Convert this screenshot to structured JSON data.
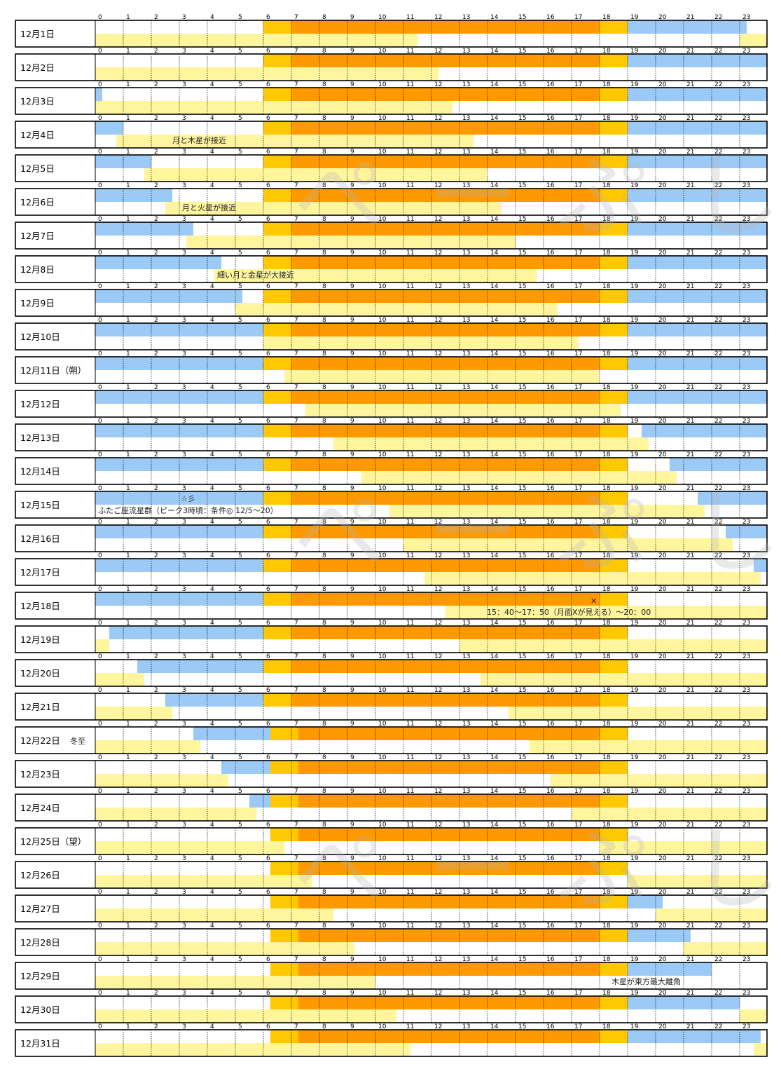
{
  "chart_data": {
    "type": "timeline",
    "hours": [
      "0",
      "1",
      "2",
      "3",
      "4",
      "5",
      "6",
      "7",
      "8",
      "9",
      "10",
      "11",
      "12",
      "13",
      "14",
      "15",
      "16",
      "17",
      "18",
      "19",
      "20",
      "21",
      "22",
      "23"
    ],
    "colors": {
      "night_sky": "#9ccaf7",
      "twilight": "#ffc800",
      "daytime": "#ff9900",
      "moon": "#fff59d",
      "grid": "#000000"
    },
    "watermark": "ぺーぷし",
    "days": [
      {
        "label": "12月1日",
        "sky": [
          [
            0,
            0
          ],
          [
            19,
            23.25
          ]
        ],
        "moon": [
          [
            0,
            11.5
          ],
          [
            23,
            24
          ]
        ]
      },
      {
        "label": "12月2日",
        "sky": [
          [
            19,
            24
          ]
        ],
        "moon": [
          [
            0,
            12.25
          ]
        ]
      },
      {
        "label": "12月3日",
        "sky": [
          [
            0,
            0.25
          ],
          [
            19,
            24
          ]
        ],
        "moon": [
          [
            0,
            12.75
          ]
        ]
      },
      {
        "label": "12月4日",
        "sky": [
          [
            0,
            1
          ],
          [
            19,
            24
          ]
        ],
        "moon": [
          [
            0.75,
            13.5
          ]
        ],
        "note": "月と木星が接近"
      },
      {
        "label": "12月5日",
        "sky": [
          [
            0,
            2
          ],
          [
            19,
            24
          ]
        ],
        "moon": [
          [
            1.75,
            14
          ]
        ]
      },
      {
        "label": "12月6日",
        "sky": [
          [
            0,
            2.75
          ],
          [
            19,
            24
          ]
        ],
        "moon": [
          [
            2.5,
            14.5
          ]
        ],
        "note": "月と火星が接近"
      },
      {
        "label": "12月7日",
        "sky": [
          [
            0,
            3.5
          ],
          [
            19,
            24
          ]
        ],
        "moon": [
          [
            3.25,
            15
          ]
        ]
      },
      {
        "label": "12月8日",
        "sky": [
          [
            0,
            4.5
          ],
          [
            19,
            24
          ]
        ],
        "moon": [
          [
            4.25,
            15.75
          ]
        ],
        "note": "細い月と金星が大接近"
      },
      {
        "label": "12月9日",
        "sky": [
          [
            0,
            5.25
          ],
          [
            19,
            24
          ]
        ],
        "moon": [
          [
            5,
            16.5
          ]
        ]
      },
      {
        "label": "12月10日",
        "sky": [
          [
            0,
            6
          ],
          [
            19,
            24
          ]
        ],
        "moon": [
          [
            6,
            17.25
          ]
        ]
      },
      {
        "label": "12月11日（朔）",
        "sky": [
          [
            0,
            6
          ],
          [
            19,
            24
          ]
        ],
        "moon": [
          [
            6.75,
            18
          ]
        ]
      },
      {
        "label": "12月12日",
        "sky": [
          [
            0,
            6
          ],
          [
            19,
            24
          ]
        ],
        "moon": [
          [
            7.5,
            18.75
          ]
        ]
      },
      {
        "label": "12月13日",
        "sky": [
          [
            0,
            6
          ],
          [
            19.5,
            24
          ]
        ],
        "moon": [
          [
            8.5,
            19.75
          ]
        ]
      },
      {
        "label": "12月14日",
        "sky": [
          [
            0,
            6
          ],
          [
            20.5,
            24
          ]
        ],
        "moon": [
          [
            9.5,
            20.75
          ]
        ]
      },
      {
        "label": "12月15日",
        "sky": [
          [
            0,
            6
          ],
          [
            21.5,
            24
          ]
        ],
        "moon": [
          [
            10.5,
            21.75
          ]
        ],
        "note": "☆彡\nふたご座流星群（ピーク3時頃：条件◎ 12/5〜20）"
      },
      {
        "label": "12月16日",
        "sky": [
          [
            0,
            6
          ],
          [
            22.5,
            24
          ]
        ],
        "moon": [
          [
            11,
            22.75
          ]
        ]
      },
      {
        "label": "12月17日",
        "sky": [
          [
            0,
            6
          ],
          [
            23.5,
            24
          ]
        ],
        "moon": [
          [
            11.75,
            23.75
          ]
        ]
      },
      {
        "label": "12月18日",
        "sky": [
          [
            0,
            6
          ]
        ],
        "moon": [
          [
            12.5,
            24
          ]
        ],
        "note": "✕\n15：40〜17：50（月面Xが見える）〜20：00"
      },
      {
        "label": "12月19日",
        "sky": [
          [
            0.5,
            6
          ]
        ],
        "moon": [
          [
            0,
            0.5
          ],
          [
            13,
            24
          ]
        ]
      },
      {
        "label": "12月20日",
        "sky": [
          [
            1.5,
            6
          ]
        ],
        "moon": [
          [
            0,
            1.75
          ],
          [
            13.75,
            24
          ]
        ]
      },
      {
        "label": "12月21日",
        "sky": [
          [
            2.5,
            6
          ]
        ],
        "moon": [
          [
            0,
            2.75
          ],
          [
            14.75,
            24
          ]
        ]
      },
      {
        "label": "12月22日",
        "note": "冬至",
        "sky": [
          [
            3.5,
            6.25
          ]
        ],
        "moon": [
          [
            0,
            3.75
          ],
          [
            15.5,
            24
          ]
        ]
      },
      {
        "label": "12月23日",
        "sky": [
          [
            4.5,
            6.25
          ]
        ],
        "moon": [
          [
            0,
            4.75
          ],
          [
            16.25,
            24
          ]
        ]
      },
      {
        "label": "12月24日",
        "sky": [
          [
            5.5,
            6.25
          ]
        ],
        "moon": [
          [
            0,
            5.75
          ],
          [
            17,
            24
          ]
        ]
      },
      {
        "label": "12月25日（望）",
        "sky": [],
        "moon": [
          [
            0,
            6.75
          ],
          [
            18,
            24
          ]
        ]
      },
      {
        "label": "12月26日",
        "sky": [],
        "moon": [
          [
            0,
            7.75
          ],
          [
            19,
            24
          ]
        ]
      },
      {
        "label": "12月27日",
        "sky": [
          [
            19,
            20.25
          ]
        ],
        "moon": [
          [
            0,
            8.5
          ],
          [
            20,
            24
          ]
        ]
      },
      {
        "label": "12月28日",
        "sky": [
          [
            19,
            21.25
          ]
        ],
        "moon": [
          [
            0,
            9.25
          ],
          [
            21,
            24
          ]
        ]
      },
      {
        "label": "12月29日",
        "sky": [
          [
            19,
            22
          ]
        ],
        "moon": [
          [
            0,
            10
          ]
        ],
        "note": "木星が東方最大離角"
      },
      {
        "label": "12月30日",
        "sky": [
          [
            19,
            23
          ]
        ],
        "moon": [
          [
            0,
            10.75
          ],
          [
            23,
            24
          ]
        ]
      },
      {
        "label": "12月31日",
        "sky": [
          [
            19,
            23.75
          ]
        ],
        "moon": [
          [
            0,
            11.25
          ],
          [
            23.5,
            24
          ]
        ]
      }
    ]
  }
}
